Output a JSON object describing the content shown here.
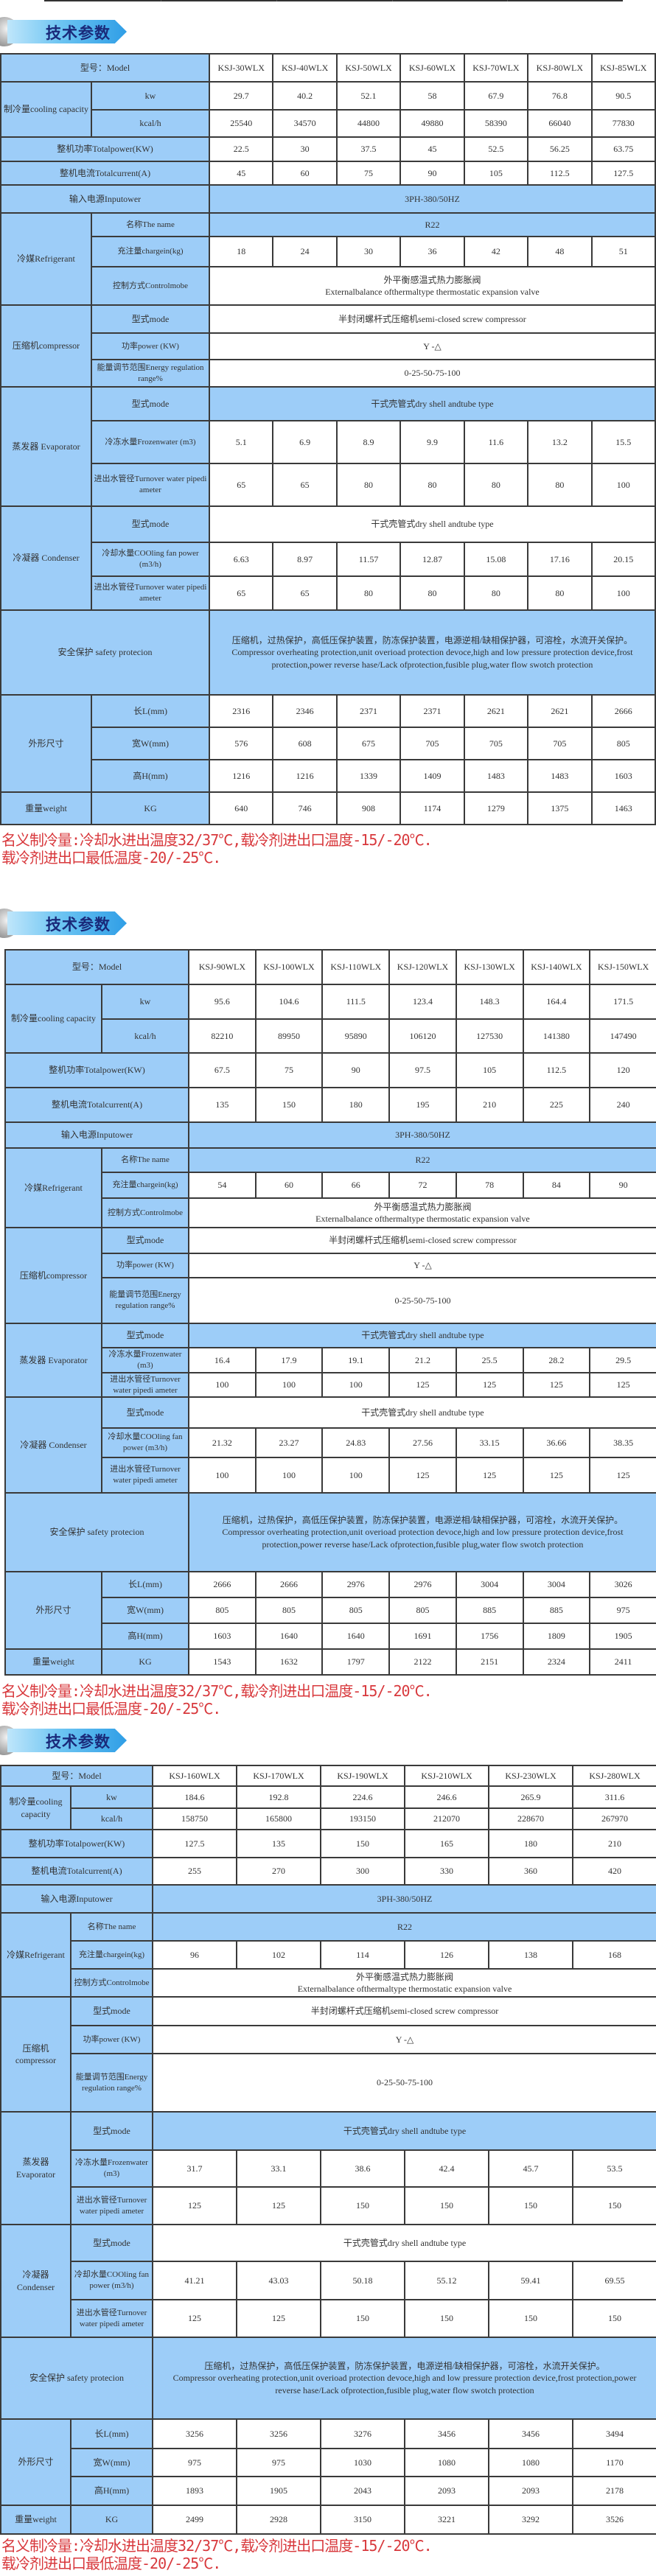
{
  "banner_title": "技术参数",
  "labels": {
    "model": "型号：Model",
    "cooling": "制冷量cooling capacity",
    "kw": "kw",
    "kcal": "kcal/h",
    "total_power": "整机功率Totalpower(KW)",
    "total_current": "整机电流Totalcurrent(A)",
    "input_power": "输入电源Inputower",
    "refrigerant": "冷媒Refrigerant",
    "name": "名称The name",
    "charge": "充注量chargein(kg)",
    "control": "控制方式Controlmobe",
    "compressor": "压缩机compressor",
    "comp_mode": "型式mode",
    "comp_power": "功率power (KW)",
    "energy": "能量调节范围Energy regulation range%",
    "evaporator": "蒸发器 Evaporator",
    "evap_mode": "型式mode",
    "frozen": "冷冻水量Frozenwater (m3)",
    "evap_pipe": "进出水管径Turnover water pipedi ameter",
    "condenser": "冷凝器 Condenser",
    "cond_mode": "型式mode",
    "cooling_water": "冷却水量COOling fan power (m3/h)",
    "cond_pipe": "进出水管径Turnover water pipedi ameter",
    "safety": "安全保护  safety protecion",
    "dimensions": "外形尺寸",
    "length": "长L(mm)",
    "width": "宽W(mm)",
    "height": "高H(mm)",
    "weight": "重量weight",
    "kg": "KG"
  },
  "shared": {
    "input_power": "3PH-380/50HZ",
    "refrigerant_name": "R22",
    "control_cn": "外平衡感温式热力膨胀阀",
    "control_en": "Externalbalance ofthermaltype thermostatic expansion valve",
    "comp_mode": "半封闭螺杆式压缩机semi-closed screw compressor",
    "comp_power": "Y -△",
    "energy": "0-25-50-75-100",
    "shell_type": "干式壳管式dry shell andtube type",
    "safety_cn": "压缩机，过热保护，高低压保护装置，防冻保护装置，电源逆相/缺相保护器，可溶栓，水流开关保护。",
    "safety_en": "Compressor overheating protection,unit overioad protection devoce,high and low pressure protection device,frost protection,power reverse hase/Lack ofprotection,fusible plug,water flow swotch protection"
  },
  "note": [
    "名义制冷量:冷却水进出温度32/37℃,载冷剂进出口温度-15/-20℃.",
    "载冷剂进出口最低温度-20/-25℃."
  ],
  "colors": {
    "header_blue": "#9dcdf8",
    "note_red": "#d8383c",
    "banner_text": "#1a2a7a"
  },
  "tables": [
    {
      "models": [
        "KSJ-30WLX",
        "KSJ-40WLX",
        "KSJ-50WLX",
        "KSJ-60WLX",
        "KSJ-70WLX",
        "KSJ-80WLX",
        "KSJ-85WLX"
      ],
      "values": {
        "kw": [
          "29.7",
          "40.2",
          "52.1",
          "58",
          "67.9",
          "76.8",
          "90.5"
        ],
        "kcal": [
          "25540",
          "34570",
          "44800",
          "49880",
          "58390",
          "66040",
          "77830"
        ],
        "total_power": [
          "22.5",
          "30",
          "37.5",
          "45",
          "52.5",
          "56.25",
          "63.75"
        ],
        "total_current": [
          "45",
          "60",
          "75",
          "90",
          "105",
          "112.5",
          "127.5"
        ],
        "charge": [
          "18",
          "24",
          "30",
          "36",
          "42",
          "48",
          "51"
        ],
        "frozen": [
          "5.1",
          "6.9",
          "8.9",
          "9.9",
          "11.6",
          "13.2",
          "15.5"
        ],
        "evap_pipe": [
          "65",
          "65",
          "80",
          "80",
          "80",
          "80",
          "100"
        ],
        "cooling_water": [
          "6.63",
          "8.97",
          "11.57",
          "12.87",
          "15.08",
          "17.16",
          "20.15"
        ],
        "cond_pipe": [
          "65",
          "65",
          "80",
          "80",
          "80",
          "80",
          "100"
        ],
        "length": [
          "2316",
          "2346",
          "2371",
          "2371",
          "2621",
          "2621",
          "2666"
        ],
        "width": [
          "576",
          "608",
          "675",
          "705",
          "705",
          "705",
          "805"
        ],
        "height": [
          "1216",
          "1216",
          "1339",
          "1409",
          "1483",
          "1483",
          "1603"
        ],
        "weight": [
          "640",
          "746",
          "908",
          "1174",
          "1279",
          "1375",
          "1463"
        ]
      }
    },
    {
      "models": [
        "KSJ-90WLX",
        "KSJ-100WLX",
        "KSJ-110WLX",
        "KSJ-120WLX",
        "KSJ-130WLX",
        "KSJ-140WLX",
        "KSJ-150WLX"
      ],
      "values": {
        "kw": [
          "95.6",
          "104.6",
          "111.5",
          "123.4",
          "148.3",
          "164.4",
          "171.5"
        ],
        "kcal": [
          "82210",
          "89950",
          "95890",
          "106120",
          "127530",
          "141380",
          "147490"
        ],
        "total_power": [
          "67.5",
          "75",
          "90",
          "97.5",
          "105",
          "112.5",
          "120"
        ],
        "total_current": [
          "135",
          "150",
          "180",
          "195",
          "210",
          "225",
          "240"
        ],
        "charge": [
          "54",
          "60",
          "66",
          "72",
          "78",
          "84",
          "90"
        ],
        "frozen": [
          "16.4",
          "17.9",
          "19.1",
          "21.2",
          "25.5",
          "28.2",
          "29.5"
        ],
        "evap_pipe": [
          "100",
          "100",
          "100",
          "125",
          "125",
          "125",
          "125"
        ],
        "cooling_water": [
          "21.32",
          "23.27",
          "24.83",
          "27.56",
          "33.15",
          "36.66",
          "38.35"
        ],
        "cond_pipe": [
          "100",
          "100",
          "100",
          "125",
          "125",
          "125",
          "125"
        ],
        "length": [
          "2666",
          "2666",
          "2976",
          "2976",
          "3004",
          "3004",
          "3026"
        ],
        "width": [
          "805",
          "805",
          "805",
          "805",
          "885",
          "885",
          "975"
        ],
        "height": [
          "1603",
          "1640",
          "1640",
          "1691",
          "1756",
          "1809",
          "1905"
        ],
        "weight": [
          "1543",
          "1632",
          "1797",
          "2122",
          "2151",
          "2324",
          "2411"
        ]
      }
    },
    {
      "models": [
        "KSJ-160WLX",
        "KSJ-170WLX",
        "KSJ-190WLX",
        "KSJ-210WLX",
        "KSJ-230WLX",
        "KSJ-280WLX"
      ],
      "values": {
        "kw": [
          "184.6",
          "192.8",
          "224.6",
          "246.6",
          "265.9",
          "311.6"
        ],
        "kcal": [
          "158750",
          "165800",
          "193150",
          "212070",
          "228670",
          "267970"
        ],
        "total_power": [
          "127.5",
          "135",
          "150",
          "165",
          "180",
          "210"
        ],
        "total_current": [
          "255",
          "270",
          "300",
          "330",
          "360",
          "420"
        ],
        "charge": [
          "96",
          "102",
          "114",
          "126",
          "138",
          "168"
        ],
        "frozen": [
          "31.7",
          "33.1",
          "38.6",
          "42.4",
          "45.7",
          "53.5"
        ],
        "evap_pipe": [
          "125",
          "125",
          "150",
          "150",
          "150",
          "150"
        ],
        "cooling_water": [
          "41.21",
          "43.03",
          "50.18",
          "55.12",
          "59.41",
          "69.55"
        ],
        "cond_pipe": [
          "125",
          "125",
          "150",
          "150",
          "150",
          "150"
        ],
        "length": [
          "3256",
          "3256",
          "3276",
          "3456",
          "3456",
          "3494"
        ],
        "width": [
          "975",
          "975",
          "1030",
          "1080",
          "1080",
          "1170"
        ],
        "height": [
          "1893",
          "1905",
          "2043",
          "2093",
          "2093",
          "2178"
        ],
        "weight": [
          "2499",
          "2928",
          "3150",
          "3221",
          "3292",
          "3526"
        ]
      }
    }
  ]
}
